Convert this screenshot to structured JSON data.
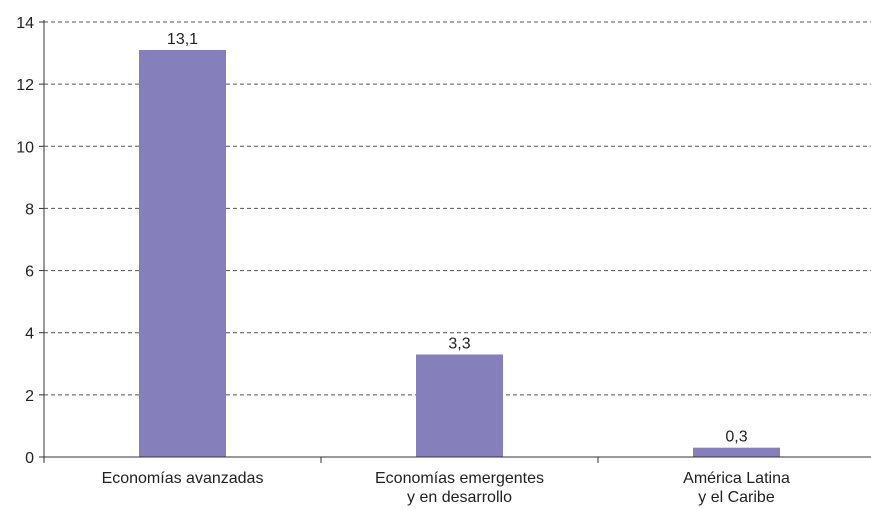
{
  "chart_data": {
    "type": "bar",
    "categories": [
      [
        "Economías avanzadas"
      ],
      [
        "Economías emergentes",
        "y en desarrollo"
      ],
      [
        "América Latina",
        "y el Caribe"
      ]
    ],
    "values": [
      13.1,
      3.3,
      0.3
    ],
    "value_labels": [
      "13,1",
      "3,3",
      "0,3"
    ],
    "ylim": [
      0,
      14
    ],
    "yticks": [
      0,
      2,
      4,
      6,
      8,
      10,
      12,
      14
    ],
    "title": "",
    "xlabel": "",
    "ylabel": "",
    "grid": "horizontal-dashed",
    "legend": "none",
    "bar_color": "#8580BC"
  }
}
